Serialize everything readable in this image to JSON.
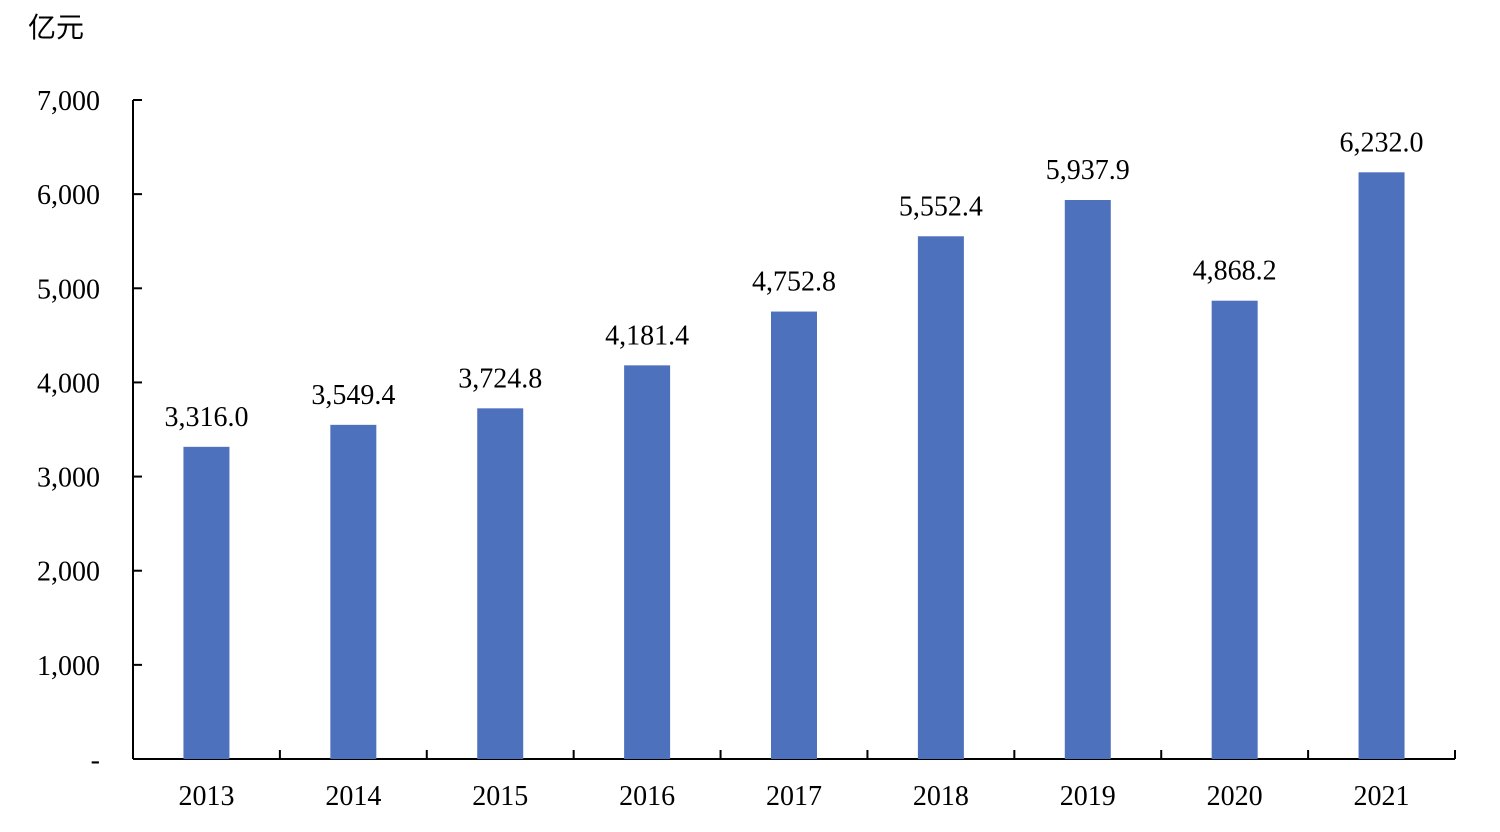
{
  "chart_data": {
    "type": "bar",
    "unit_label": "亿元",
    "categories": [
      "2013",
      "2014",
      "2015",
      "2016",
      "2017",
      "2018",
      "2019",
      "2020",
      "2021"
    ],
    "values": [
      3316.0,
      3549.4,
      3724.8,
      4181.4,
      4752.8,
      5552.4,
      5937.9,
      4868.2,
      6232.0
    ],
    "data_labels": [
      "3,316.0",
      "3,549.4",
      "3,724.8",
      "4,181.4",
      "4,752.8",
      "5,552.4",
      "5,937.9",
      "4,868.2",
      "6,232.0"
    ],
    "ylim": [
      0,
      7000
    ],
    "y_ticks": [
      0,
      1000,
      2000,
      3000,
      4000,
      5000,
      6000,
      7000
    ],
    "y_tick_labels": [
      "-",
      "1,000",
      "2,000",
      "3,000",
      "4,000",
      "5,000",
      "6,000",
      "7,000"
    ],
    "bar_color": "#4E71BE",
    "grid": false,
    "title": "",
    "xlabel": "",
    "ylabel": ""
  }
}
